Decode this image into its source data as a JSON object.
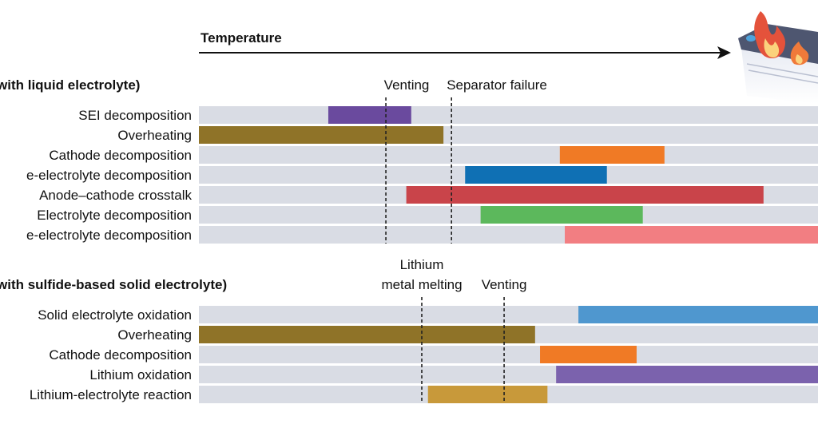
{
  "axis_label": "Temperature",
  "colors": {
    "track": "#d9dce4",
    "marker": "#222222"
  },
  "icon": "burning-battery-icon",
  "chart_data": [
    {
      "type": "gantt",
      "title": "with liquid electrolyte)",
      "xlabel": "Temperature",
      "x_scale": "relative temperature, 0 to 1",
      "markers": [
        {
          "label": "Venting",
          "x": 0.302
        },
        {
          "label": "Separator failure",
          "x": 0.408
        }
      ],
      "rows": [
        {
          "label": "SEI decomposition",
          "start": 0.209,
          "end": 0.343,
          "color": "#6a4a9e"
        },
        {
          "label": "Overheating",
          "start": 0.0,
          "end": 0.395,
          "color": "#8f7328"
        },
        {
          "label": "Cathode decomposition",
          "start": 0.583,
          "end": 0.752,
          "color": "#f07a25"
        },
        {
          "label": "e-electrolyte decomposition",
          "start": 0.43,
          "end": 0.659,
          "color": "#0f70b4"
        },
        {
          "label": "Anode–cathode crosstalk",
          "start": 0.335,
          "end": 0.912,
          "color": "#c9444a"
        },
        {
          "label": "Electrolyte decomposition",
          "start": 0.455,
          "end": 0.717,
          "color": "#5cb85c"
        },
        {
          "label": "e-electrolyte decomposition",
          "start": 0.591,
          "end": 1.0,
          "color": "#f27e82"
        }
      ]
    },
    {
      "type": "gantt",
      "title": "with sulfide-based solid electrolyte)",
      "xlabel": "Temperature",
      "x_scale": "relative temperature, 0 to 1",
      "markers": [
        {
          "label": "Lithium metal melting",
          "lines": [
            "Lithium",
            "metal melting"
          ],
          "x": 0.36
        },
        {
          "label": "Venting",
          "lines": [
            "Venting"
          ],
          "x": 0.493
        }
      ],
      "rows": [
        {
          "label": "Solid electrolyte oxidation",
          "start": 0.613,
          "end": 1.0,
          "color": "#4f97cf"
        },
        {
          "label": "Overheating",
          "start": 0.0,
          "end": 0.543,
          "color": "#8f7328"
        },
        {
          "label": "Cathode decomposition",
          "start": 0.551,
          "end": 0.707,
          "color": "#f07a25"
        },
        {
          "label": "Lithium oxidation",
          "start": 0.577,
          "end": 1.0,
          "color": "#7b62ad"
        },
        {
          "label": "Lithium-electrolyte reaction",
          "start": 0.37,
          "end": 0.563,
          "color": "#c8993a"
        }
      ]
    }
  ]
}
